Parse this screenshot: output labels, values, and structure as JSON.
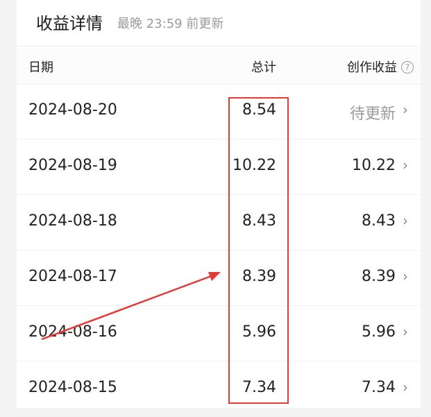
{
  "header": {
    "title": "收益详情",
    "subtitle": "最晚 23:59 前更新"
  },
  "table": {
    "columns": {
      "date": "日期",
      "total": "总计",
      "earnings": "创作收益"
    },
    "help_icon": "question-circle-icon",
    "rows": [
      {
        "date": "2024-08-20",
        "total": "8.54",
        "earnings": "待更新"
      },
      {
        "date": "2024-08-19",
        "total": "10.22",
        "earnings": "10.22"
      },
      {
        "date": "2024-08-18",
        "total": "8.43",
        "earnings": "8.43"
      },
      {
        "date": "2024-08-17",
        "total": "8.39",
        "earnings": "8.39"
      },
      {
        "date": "2024-08-16",
        "total": "5.96",
        "earnings": "5.96"
      },
      {
        "date": "2024-08-15",
        "total": "7.34",
        "earnings": "7.34"
      }
    ]
  },
  "annotation": {
    "color": "#e53935"
  }
}
